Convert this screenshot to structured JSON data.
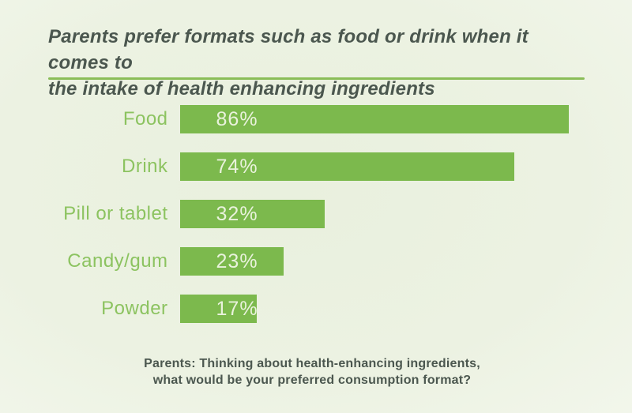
{
  "title_lines": [
    "Parents prefer formats such as food or drink when it comes to",
    "the intake of health enhancing ingredients"
  ],
  "footnote_lines": [
    "Parents: Thinking about health-enhancing ingredients,",
    "what would be your preferred consumption format?"
  ],
  "colors": {
    "background": "#ecf2e2",
    "title_text": "#4b574f",
    "divider": "#8abd58",
    "bar_fill": "#7cb94d",
    "category_label": "#8cc360",
    "value_label": "#e9f2dc",
    "footnote_text": "#4b574f"
  },
  "chart_data": {
    "type": "bar",
    "orientation": "horizontal",
    "title": "Parents prefer formats such as food or drink when it comes to the intake of health enhancing ingredients",
    "subtitle": "",
    "xlabel": "",
    "ylabel": "",
    "xlim": [
      0,
      100
    ],
    "grid": false,
    "legend": false,
    "value_label_position": "inside-left",
    "categories": [
      "Food",
      "Drink",
      "Pill or tablet",
      "Candy/gum",
      "Powder"
    ],
    "values": [
      86,
      74,
      32,
      23,
      17
    ],
    "value_labels": [
      "86%",
      "74%",
      "32%",
      "23%",
      "17%"
    ],
    "annotation": "Parents: Thinking about health-enhancing ingredients, what would be your preferred consumption format?"
  }
}
